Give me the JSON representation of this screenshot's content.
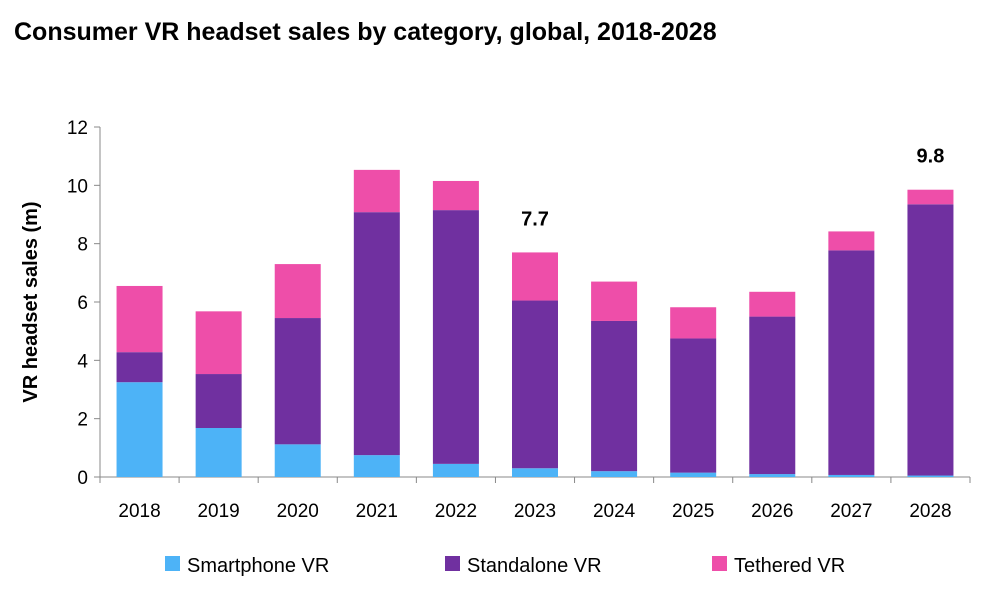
{
  "chart_data": {
    "type": "bar",
    "stacked": true,
    "title": "Consumer VR headset sales by category, global, 2018-2028",
    "xlabel": "",
    "ylabel": "VR headset sales (m)",
    "ylim": [
      0,
      12
    ],
    "yticks": [
      "0",
      "2",
      "4",
      "6",
      "8",
      "10",
      "12"
    ],
    "categories": [
      "2018",
      "2019",
      "2020",
      "2021",
      "2022",
      "2023",
      "2024",
      "2025",
      "2026",
      "2027",
      "2028"
    ],
    "series": [
      {
        "name": "Smartphone VR",
        "color": "#4db3f7",
        "values": [
          3.25,
          1.68,
          1.12,
          0.75,
          0.45,
          0.3,
          0.2,
          0.15,
          0.1,
          0.07,
          0.05
        ]
      },
      {
        "name": "Standalone VR",
        "color": "#7030a0",
        "values": [
          1.03,
          1.85,
          4.33,
          8.33,
          8.7,
          5.75,
          5.15,
          4.6,
          5.4,
          7.7,
          9.3
        ]
      },
      {
        "name": "Tethered VR",
        "color": "#ee4ea9",
        "values": [
          2.27,
          2.15,
          1.85,
          1.45,
          1.0,
          1.65,
          1.35,
          1.07,
          0.85,
          0.65,
          0.5
        ]
      }
    ],
    "annotations": [
      {
        "category": "2023",
        "label": "7.7"
      },
      {
        "category": "2028",
        "label": "9.8"
      }
    ],
    "legend_position": "bottom",
    "grid": false
  }
}
